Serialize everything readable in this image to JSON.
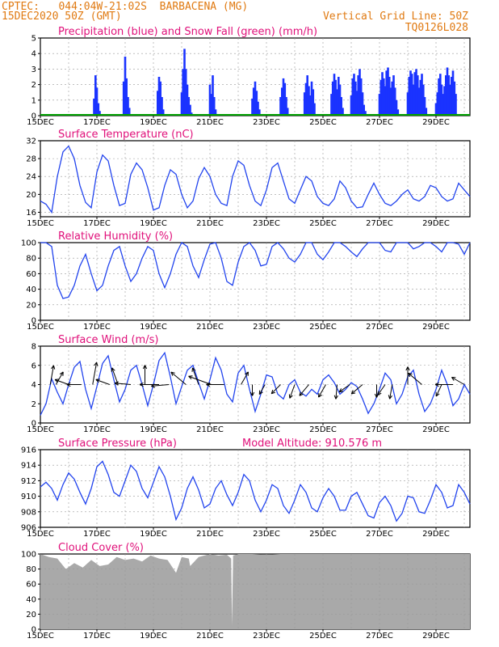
{
  "header": {
    "line1_left": "CPTEC:   044:04W-21:02S  BARBACENA (MG)",
    "line2_left": "15DEC2020 50Z (GMT)",
    "line2_right": "Vertical Grid Line: 50Z",
    "line3_right": "TQ0126L028"
  },
  "colors": {
    "header": "#e07a12",
    "title": "#e0107a",
    "precip": "#1a33ff",
    "snow": "#00a000",
    "line": "#2244ee",
    "cloud": "#a9a9a9"
  },
  "x_tick_labels": [
    "15DEC",
    "17DEC",
    "19DEC",
    "21DEC",
    "23DEC",
    "25DEC",
    "27DEC",
    "29DEC"
  ],
  "chart_data": [
    {
      "type": "bar",
      "title": "Precipitation (blue) and Snow Fall (green) (mm/h)",
      "ylim": [
        0,
        5
      ],
      "yticks": [
        "0",
        "1",
        "2",
        "3",
        "4",
        "5"
      ],
      "series": [
        {
          "name": "Precipitation (blue)",
          "x": [
            1.9,
            1.95,
            2.0,
            2.05,
            2.1,
            2.95,
            3.0,
            3.05,
            3.1,
            3.15,
            4.15,
            4.2,
            4.25,
            4.3,
            4.35,
            5.0,
            5.05,
            5.1,
            5.15,
            5.2,
            5.25,
            5.3,
            5.35,
            6.0,
            6.05,
            6.1,
            6.15,
            6.2,
            7.5,
            7.55,
            7.6,
            7.65,
            7.7,
            7.75,
            8.5,
            8.55,
            8.6,
            8.65,
            8.7,
            8.75,
            9.35,
            9.4,
            9.45,
            9.5,
            9.55,
            9.6,
            9.65,
            9.7,
            10.3,
            10.35,
            10.4,
            10.45,
            10.5,
            10.55,
            10.6,
            10.65,
            10.7,
            11.0,
            11.05,
            11.1,
            11.15,
            11.2,
            11.25,
            11.3,
            11.35,
            11.4,
            11.45,
            11.5,
            12.0,
            12.05,
            12.1,
            12.15,
            12.2,
            12.25,
            12.3,
            12.35,
            12.4,
            12.45,
            12.5,
            12.55,
            12.6,
            12.65,
            13.0,
            13.05,
            13.1,
            13.15,
            13.2,
            13.25,
            13.3,
            13.35,
            13.4,
            13.45,
            13.5,
            13.55,
            13.6,
            13.65,
            14.0,
            14.05,
            14.1,
            14.15,
            14.2,
            14.25,
            14.3,
            14.35,
            14.4,
            14.45,
            14.5,
            14.55,
            14.6,
            14.65,
            14.7
          ],
          "values": [
            1.1,
            2.6,
            1.8,
            0.8,
            0.3,
            2.2,
            3.8,
            2.4,
            1.2,
            0.5,
            1.6,
            2.5,
            2.2,
            1.2,
            0.4,
            1.5,
            3.0,
            4.3,
            3.0,
            2.0,
            1.2,
            0.7,
            0.2,
            2.0,
            1.4,
            2.6,
            1.2,
            0.4,
            1.1,
            1.8,
            2.2,
            1.6,
            0.9,
            0.4,
            1.2,
            1.8,
            2.4,
            2.1,
            1.2,
            0.5,
            1.5,
            2.1,
            2.6,
            1.9,
            1.3,
            2.2,
            1.7,
            0.8,
            1.4,
            2.2,
            2.7,
            2.3,
            1.7,
            2.5,
            2.0,
            1.2,
            0.5,
            1.3,
            2.4,
            2.7,
            2.2,
            1.6,
            2.6,
            3.0,
            2.4,
            1.5,
            0.7,
            0.3,
            1.4,
            2.3,
            2.8,
            2.4,
            1.9,
            2.9,
            3.1,
            2.5,
            1.8,
            2.2,
            2.6,
            1.8,
            1.0,
            0.4,
            1.5,
            2.5,
            2.9,
            2.7,
            2.0,
            2.8,
            3.0,
            2.6,
            1.8,
            2.3,
            2.7,
            2.0,
            1.2,
            0.5,
            0.8,
            1.5,
            2.4,
            2.7,
            2.0,
            1.4,
            1.9,
            2.6,
            3.1,
            2.6,
            2.0,
            2.5,
            2.9,
            2.2,
            1.4
          ]
        },
        {
          "name": "Snow Fall (green)",
          "values": [
            0
          ]
        }
      ]
    },
    {
      "type": "line",
      "title": "Surface Temperature (nC)",
      "ylim": [
        15,
        32
      ],
      "yticks": [
        "16",
        "20",
        "24",
        "28",
        "32"
      ],
      "x": [
        0,
        0.2,
        0.4,
        0.6,
        0.8,
        1.0,
        1.2,
        1.4,
        1.6,
        1.8,
        2.0,
        2.2,
        2.4,
        2.6,
        2.8,
        3.0,
        3.2,
        3.4,
        3.6,
        3.8,
        4.0,
        4.2,
        4.4,
        4.6,
        4.8,
        5.0,
        5.2,
        5.4,
        5.6,
        5.8,
        6.0,
        6.2,
        6.4,
        6.6,
        6.8,
        7.0,
        7.2,
        7.4,
        7.6,
        7.8,
        8.0,
        8.2,
        8.4,
        8.6,
        8.8,
        9.0,
        9.2,
        9.4,
        9.6,
        9.8,
        10.0,
        10.2,
        10.4,
        10.6,
        10.8,
        11.0,
        11.2,
        11.4,
        11.6,
        11.8,
        12.0,
        12.2,
        12.4,
        12.6,
        12.8,
        13.0,
        13.2,
        13.4,
        13.6,
        13.8,
        14.0,
        14.2,
        14.4,
        14.6,
        14.8,
        15.0,
        15.2
      ],
      "values": [
        18.5,
        17.8,
        16.0,
        24.0,
        29.5,
        30.8,
        28.0,
        22.0,
        18.2,
        17.0,
        25.0,
        28.8,
        27.5,
        22.0,
        17.5,
        18.0,
        24.5,
        27.0,
        25.5,
        21.5,
        16.5,
        17.0,
        22.0,
        25.5,
        24.5,
        20.0,
        17.0,
        18.5,
        23.5,
        26.0,
        24.0,
        20.0,
        18.0,
        17.5,
        24.0,
        27.5,
        26.5,
        22.0,
        18.5,
        17.5,
        21.0,
        26.0,
        27.0,
        23.0,
        19.0,
        18.0,
        21.0,
        24.0,
        23.0,
        19.5,
        18.0,
        17.5,
        19.0,
        23.0,
        21.5,
        18.5,
        17.0,
        17.2,
        20.0,
        22.5,
        20.0,
        18.0,
        17.5,
        18.5,
        20.0,
        21.0,
        19.0,
        18.5,
        19.5,
        22.0,
        21.5,
        19.5,
        18.5,
        19.0,
        22.5,
        21.0,
        19.5
      ]
    },
    {
      "type": "line",
      "title": "Relative Humidity (%)",
      "ylim": [
        0,
        100
      ],
      "yticks": [
        "0",
        "20",
        "40",
        "60",
        "80",
        "100"
      ],
      "x": [
        0,
        0.2,
        0.4,
        0.6,
        0.8,
        1.0,
        1.2,
        1.4,
        1.6,
        1.8,
        2.0,
        2.2,
        2.4,
        2.6,
        2.8,
        3.0,
        3.2,
        3.4,
        3.6,
        3.8,
        4.0,
        4.2,
        4.4,
        4.6,
        4.8,
        5.0,
        5.2,
        5.4,
        5.6,
        5.8,
        6.0,
        6.2,
        6.4,
        6.6,
        6.8,
        7.0,
        7.2,
        7.4,
        7.6,
        7.8,
        8.0,
        8.2,
        8.4,
        8.6,
        8.8,
        9.0,
        9.2,
        9.4,
        9.6,
        9.8,
        10.0,
        10.2,
        10.4,
        10.6,
        10.8,
        11.0,
        11.2,
        11.4,
        11.6,
        11.8,
        12.0,
        12.2,
        12.4,
        12.6,
        12.8,
        13.0,
        13.2,
        13.4,
        13.6,
        13.8,
        14.0,
        14.2,
        14.4,
        14.6,
        14.8,
        15.0,
        15.2
      ],
      "values": [
        100,
        100,
        95,
        45,
        28,
        30,
        45,
        70,
        85,
        60,
        38,
        45,
        70,
        90,
        95,
        70,
        50,
        60,
        80,
        95,
        90,
        60,
        42,
        60,
        85,
        100,
        95,
        70,
        55,
        78,
        98,
        100,
        80,
        50,
        45,
        75,
        95,
        100,
        90,
        70,
        72,
        95,
        100,
        92,
        80,
        75,
        85,
        100,
        100,
        85,
        78,
        88,
        100,
        100,
        95,
        88,
        82,
        92,
        100,
        100,
        100,
        90,
        88,
        100,
        100,
        100,
        92,
        95,
        100,
        100,
        95,
        88,
        100,
        100,
        98,
        85,
        100
      ]
    },
    {
      "type": "line",
      "title": "Surface Wind (m/s)",
      "ylim": [
        0,
        8
      ],
      "yticks": [
        "0",
        "2",
        "4",
        "6",
        "8"
      ],
      "x": [
        0,
        0.2,
        0.4,
        0.6,
        0.8,
        1.0,
        1.2,
        1.4,
        1.6,
        1.8,
        2.0,
        2.2,
        2.4,
        2.6,
        2.8,
        3.0,
        3.2,
        3.4,
        3.6,
        3.8,
        4.0,
        4.2,
        4.4,
        4.6,
        4.8,
        5.0,
        5.2,
        5.4,
        5.6,
        5.8,
        6.0,
        6.2,
        6.4,
        6.6,
        6.8,
        7.0,
        7.2,
        7.4,
        7.6,
        7.8,
        8.0,
        8.2,
        8.4,
        8.6,
        8.8,
        9.0,
        9.2,
        9.4,
        9.6,
        9.8,
        10.0,
        10.2,
        10.4,
        10.6,
        10.8,
        11.0,
        11.2,
        11.4,
        11.6,
        11.8,
        12.0,
        12.2,
        12.4,
        12.6,
        12.8,
        13.0,
        13.2,
        13.4,
        13.6,
        13.8,
        14.0,
        14.2,
        14.4,
        14.6,
        14.8,
        15.0,
        15.2
      ],
      "values": [
        0.8,
        2.0,
        4.6,
        3.2,
        2.0,
        4.0,
        5.8,
        6.4,
        3.5,
        1.5,
        3.8,
        6.2,
        7.0,
        4.5,
        2.2,
        3.5,
        5.5,
        6.0,
        4.0,
        1.8,
        4.0,
        6.5,
        7.3,
        4.8,
        2.0,
        3.8,
        5.5,
        6.0,
        4.2,
        2.5,
        4.5,
        6.8,
        5.5,
        3.0,
        2.2,
        5.2,
        6.0,
        3.5,
        1.2,
        3.0,
        5.0,
        4.8,
        3.0,
        2.5,
        4.0,
        4.5,
        3.2,
        2.8,
        3.5,
        3.0,
        4.5,
        5.0,
        4.2,
        3.0,
        3.5,
        4.2,
        3.8,
        2.5,
        1.0,
        2.0,
        3.5,
        5.2,
        4.5,
        2.0,
        3.0,
        4.8,
        5.5,
        3.0,
        1.2,
        2.0,
        3.5,
        5.5,
        4.0,
        1.8,
        2.5,
        4.0,
        3.0
      ]
    },
    {
      "type": "line",
      "title": "Surface Pressure (hPa)",
      "annotation": "Model Altitude: 910.576 m",
      "ylim": [
        906,
        916
      ],
      "yticks": [
        "906",
        "908",
        "910",
        "912",
        "914",
        "916"
      ],
      "x": [
        0,
        0.2,
        0.4,
        0.6,
        0.8,
        1.0,
        1.2,
        1.4,
        1.6,
        1.8,
        2.0,
        2.2,
        2.4,
        2.6,
        2.8,
        3.0,
        3.2,
        3.4,
        3.6,
        3.8,
        4.0,
        4.2,
        4.4,
        4.6,
        4.8,
        5.0,
        5.2,
        5.4,
        5.6,
        5.8,
        6.0,
        6.2,
        6.4,
        6.6,
        6.8,
        7.0,
        7.2,
        7.4,
        7.6,
        7.8,
        8.0,
        8.2,
        8.4,
        8.6,
        8.8,
        9.0,
        9.2,
        9.4,
        9.6,
        9.8,
        10.0,
        10.2,
        10.4,
        10.6,
        10.8,
        11.0,
        11.2,
        11.4,
        11.6,
        11.8,
        12.0,
        12.2,
        12.4,
        12.6,
        12.8,
        13.0,
        13.2,
        13.4,
        13.6,
        13.8,
        14.0,
        14.2,
        14.4,
        14.6,
        14.8,
        15.0,
        15.2
      ],
      "values": [
        911.2,
        911.8,
        911.0,
        909.5,
        911.5,
        913.0,
        912.2,
        910.5,
        909.0,
        911.0,
        913.8,
        914.5,
        912.8,
        910.5,
        910.0,
        912.0,
        914.0,
        913.2,
        911.0,
        909.8,
        911.8,
        913.8,
        912.5,
        910.0,
        907.0,
        908.5,
        911.0,
        912.5,
        910.8,
        908.5,
        909.0,
        911.0,
        912.0,
        910.2,
        908.8,
        910.5,
        912.8,
        912.0,
        909.5,
        908.0,
        909.5,
        911.5,
        911.0,
        908.8,
        907.8,
        909.5,
        911.5,
        910.5,
        908.5,
        908.0,
        909.8,
        911.0,
        910.0,
        908.2,
        908.2,
        910.0,
        910.5,
        909.0,
        907.5,
        907.2,
        909.2,
        910.0,
        908.8,
        906.8,
        907.8,
        910.0,
        909.8,
        908.0,
        907.8,
        909.5,
        911.5,
        910.5,
        908.5,
        908.8,
        911.5,
        910.5,
        909.0
      ]
    },
    {
      "type": "area",
      "title": "Cloud Cover (%)",
      "ylim": [
        0,
        100
      ],
      "yticks": [
        "0",
        "20",
        "40",
        "60",
        "80",
        "100"
      ],
      "x": [
        0,
        0.3,
        0.6,
        0.9,
        1.2,
        1.5,
        1.8,
        2.1,
        2.4,
        2.7,
        3.0,
        3.3,
        3.6,
        3.9,
        4.2,
        4.5,
        4.8,
        5.0,
        5.25,
        5.3,
        5.6,
        6.0,
        6.3,
        6.6,
        6.75,
        6.78,
        6.82,
        7.0,
        7.5,
        8.0,
        8.5,
        9.0,
        10.0,
        11.0,
        12.0,
        13.0,
        14.0,
        15.2
      ],
      "values": [
        100,
        96,
        94,
        80,
        88,
        82,
        92,
        84,
        86,
        96,
        92,
        94,
        90,
        98,
        94,
        92,
        75,
        96,
        94,
        84,
        96,
        100,
        98,
        99,
        94,
        5,
        98,
        100,
        100,
        99,
        100,
        100,
        100,
        100,
        100,
        100,
        100,
        100
      ]
    }
  ],
  "wind_barbs": {
    "x": [
      0.35,
      0.55,
      1.0,
      1.45,
      1.85,
      2.45,
      2.75,
      3.2,
      3.7,
      4.2,
      4.55,
      5.15,
      5.6,
      6.05,
      6.5,
      7.1,
      7.5,
      7.95,
      8.5,
      9.0,
      9.5,
      10.1,
      10.5,
      10.95,
      11.4,
      11.9,
      12.2,
      12.45,
      13.0,
      13.5,
      14.2,
      14.6,
      15.0
    ],
    "angle_deg": [
      280,
      300,
      200,
      180,
      280,
      200,
      250,
      185,
      270,
      180,
      175,
      220,
      250,
      200,
      180,
      300,
      90,
      120,
      135,
      110,
      130,
      120,
      95,
      145,
      140,
      90,
      125,
      100,
      270,
      220,
      115,
      180,
      210
    ],
    "len": [
      24,
      18,
      18,
      18,
      28,
      18,
      22,
      20,
      24,
      24,
      22,
      24,
      22,
      30,
      22,
      18,
      14,
      14,
      16,
      18,
      18,
      18,
      18,
      16,
      18,
      16,
      16,
      18,
      22,
      22,
      16,
      22,
      18
    ]
  }
}
